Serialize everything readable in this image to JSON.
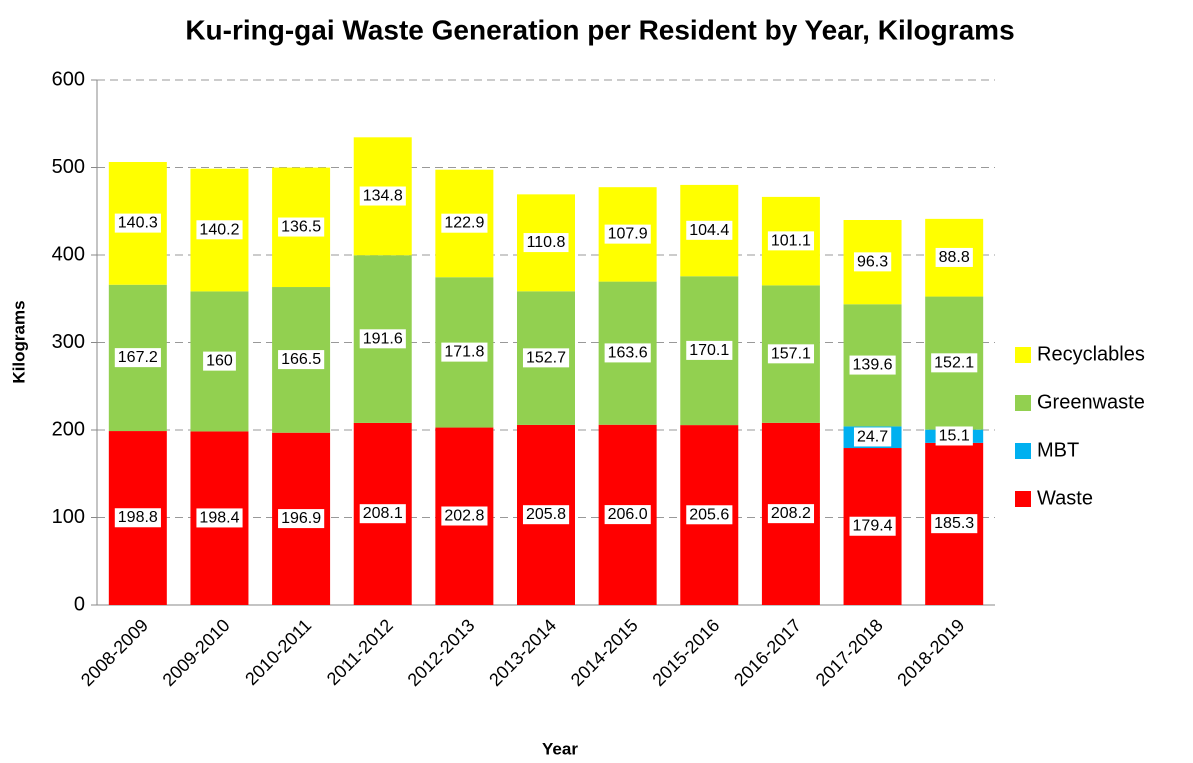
{
  "chart_data": {
    "type": "stacked_bar",
    "title": "Ku-ring-gai Waste Generation per Resident by Year, Kilograms",
    "x_label": "Year",
    "y_label": "Kilograms",
    "categories": [
      "2008-2009",
      "2009-2010",
      "2010-2011",
      "2011-2012",
      "2012-2013",
      "2013-2014",
      "2014-2015",
      "2015-2016",
      "2016-2017",
      "2017-2018",
      "2018-2019"
    ],
    "series": [
      {
        "name": "Waste",
        "color": "#ff0000",
        "values": [
          198.8,
          198.4,
          196.9,
          208.1,
          202.8,
          205.8,
          206.0,
          205.6,
          208.2,
          179.4,
          185.3
        ],
        "value_labels": [
          "198.8",
          "198.4",
          "196.9",
          "208.1",
          "202.8",
          "205.8",
          "206.0",
          "205.6",
          "208.2",
          "179.4",
          "185.3"
        ]
      },
      {
        "name": "MBT",
        "color": "#00b0f0",
        "values": [
          null,
          null,
          null,
          null,
          null,
          null,
          null,
          null,
          null,
          24.7,
          15.1
        ]
      },
      {
        "name": "Greenwaste",
        "color": "#92d050",
        "values": [
          167.2,
          160,
          166.5,
          191.6,
          171.8,
          152.7,
          163.6,
          170.1,
          157.1,
          139.6,
          152.1
        ]
      },
      {
        "name": "Recyclables",
        "color": "#ffff00",
        "values": [
          140.3,
          140.2,
          136.5,
          134.8,
          122.9,
          110.8,
          107.9,
          104.4,
          101.1,
          96.3,
          88.8
        ]
      }
    ],
    "ylim": [
      0,
      600
    ],
    "yticks": [
      0,
      100,
      200,
      300,
      400,
      500,
      600
    ],
    "grid": true,
    "legend": "right"
  }
}
